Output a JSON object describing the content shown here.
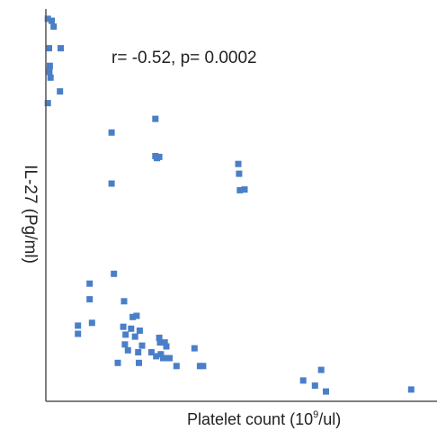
{
  "chart_data": {
    "type": "scatter",
    "title": "",
    "annotation": "r= -0.52, p= 0.0002",
    "xlabel": {
      "text_before": "Platelet count (10",
      "superscript": "9",
      "text_after": "/ul)"
    },
    "ylabel": "IL-27 (Pg/ml)",
    "xlim": [
      0,
      100
    ],
    "ylim": [
      0,
      100
    ],
    "grid": false,
    "legend": "none",
    "point_color": "#4a7fc8",
    "axis_color": "#555555",
    "series": [
      {
        "points": [
          {
            "x": 0.5,
            "y": 97.5
          },
          {
            "x": 1.5,
            "y": 97.0
          },
          {
            "x": 2.0,
            "y": 95.5
          },
          {
            "x": 0.8,
            "y": 90.0
          },
          {
            "x": 3.8,
            "y": 90.0
          },
          {
            "x": 1.0,
            "y": 85.5
          },
          {
            "x": 0.9,
            "y": 84.0
          },
          {
            "x": 1.2,
            "y": 82.5
          },
          {
            "x": 3.6,
            "y": 79.0
          },
          {
            "x": 0.5,
            "y": 76.0
          },
          {
            "x": 28.0,
            "y": 72.0
          },
          {
            "x": 16.8,
            "y": 68.5
          },
          {
            "x": 28.0,
            "y": 62.5
          },
          {
            "x": 28.4,
            "y": 62.0
          },
          {
            "x": 29.0,
            "y": 62.3
          },
          {
            "x": 49.2,
            "y": 60.5
          },
          {
            "x": 49.4,
            "y": 58.0
          },
          {
            "x": 16.8,
            "y": 55.5
          },
          {
            "x": 49.6,
            "y": 53.8
          },
          {
            "x": 50.8,
            "y": 54.0
          },
          {
            "x": 17.4,
            "y": 32.5
          },
          {
            "x": 11.2,
            "y": 30.0
          },
          {
            "x": 11.2,
            "y": 26.0
          },
          {
            "x": 20.0,
            "y": 25.5
          },
          {
            "x": 22.2,
            "y": 21.5
          },
          {
            "x": 23.2,
            "y": 21.8
          },
          {
            "x": 11.8,
            "y": 20.0
          },
          {
            "x": 8.2,
            "y": 19.3
          },
          {
            "x": 19.8,
            "y": 19.0
          },
          {
            "x": 21.8,
            "y": 18.5
          },
          {
            "x": 24.0,
            "y": 18.0
          },
          {
            "x": 8.2,
            "y": 17.2
          },
          {
            "x": 20.4,
            "y": 17.0
          },
          {
            "x": 22.8,
            "y": 16.5
          },
          {
            "x": 29.0,
            "y": 16.2
          },
          {
            "x": 29.2,
            "y": 15.0
          },
          {
            "x": 30.4,
            "y": 15.0
          },
          {
            "x": 20.2,
            "y": 14.5
          },
          {
            "x": 24.6,
            "y": 14.2
          },
          {
            "x": 30.8,
            "y": 14.0
          },
          {
            "x": 38.0,
            "y": 13.5
          },
          {
            "x": 21.0,
            "y": 13.0
          },
          {
            "x": 23.6,
            "y": 12.5
          },
          {
            "x": 27.0,
            "y": 12.5
          },
          {
            "x": 29.4,
            "y": 12.0
          },
          {
            "x": 28.2,
            "y": 11.5
          },
          {
            "x": 30.0,
            "y": 11.0
          },
          {
            "x": 31.6,
            "y": 11.0
          },
          {
            "x": 18.4,
            "y": 9.8
          },
          {
            "x": 23.8,
            "y": 9.8
          },
          {
            "x": 33.4,
            "y": 9.0
          },
          {
            "x": 39.4,
            "y": 9.0
          },
          {
            "x": 40.2,
            "y": 9.0
          },
          {
            "x": 70.4,
            "y": 8.0
          },
          {
            "x": 65.8,
            "y": 5.3
          },
          {
            "x": 68.8,
            "y": 4.0
          },
          {
            "x": 71.6,
            "y": 2.5
          },
          {
            "x": 93.4,
            "y": 3.0
          }
        ]
      }
    ]
  }
}
